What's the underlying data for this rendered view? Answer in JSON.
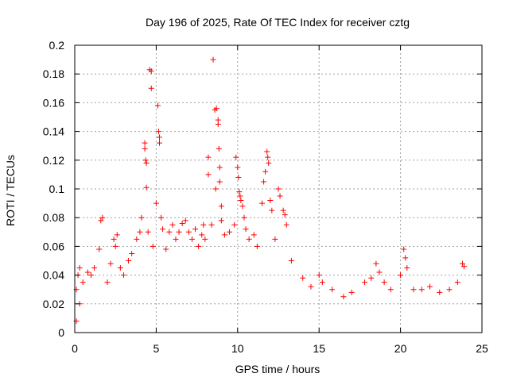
{
  "chart_data": {
    "type": "scatter",
    "title": "Day 196 of 2025, Rate Of TEC Index for receiver cztg",
    "xlabel": "GPS time / hours",
    "ylabel": "ROTI / TECUs",
    "xlim": [
      0,
      25
    ],
    "ylim": [
      0,
      0.2
    ],
    "xticks": [
      0,
      5,
      10,
      15,
      20,
      25
    ],
    "xtick_labels": [
      "0",
      "5",
      "10",
      "15",
      "20",
      "25"
    ],
    "yticks": [
      0,
      0.02,
      0.04,
      0.06,
      0.08,
      0.1,
      0.12,
      0.14,
      0.16,
      0.18,
      0.2
    ],
    "ytick_labels": [
      "0",
      "0.02",
      "0.04",
      "0.06",
      "0.08",
      "0.1",
      "0.12",
      "0.14",
      "0.16",
      "0.18",
      "0.2"
    ],
    "grid": true,
    "marker": "+",
    "color": "#ff0000",
    "series": [
      {
        "name": "ROTI",
        "points": [
          [
            0.1,
            0.008
          ],
          [
            0.1,
            0.03
          ],
          [
            0.2,
            0.04
          ],
          [
            0.3,
            0.045
          ],
          [
            0.3,
            0.02
          ],
          [
            0.5,
            0.035
          ],
          [
            0.8,
            0.042
          ],
          [
            1.0,
            0.04
          ],
          [
            1.2,
            0.045
          ],
          [
            1.5,
            0.058
          ],
          [
            1.6,
            0.078
          ],
          [
            1.7,
            0.08
          ],
          [
            2.0,
            0.035
          ],
          [
            2.2,
            0.048
          ],
          [
            2.4,
            0.065
          ],
          [
            2.5,
            0.06
          ],
          [
            2.6,
            0.068
          ],
          [
            2.8,
            0.045
          ],
          [
            3.0,
            0.04
          ],
          [
            3.3,
            0.05
          ],
          [
            3.5,
            0.055
          ],
          [
            3.8,
            0.065
          ],
          [
            4.0,
            0.07
          ],
          [
            4.1,
            0.08
          ],
          [
            4.3,
            0.132
          ],
          [
            4.3,
            0.128
          ],
          [
            4.35,
            0.12
          ],
          [
            4.4,
            0.118
          ],
          [
            4.4,
            0.101
          ],
          [
            4.5,
            0.07
          ],
          [
            4.6,
            0.183
          ],
          [
            4.7,
            0.182
          ],
          [
            4.7,
            0.17
          ],
          [
            4.8,
            0.06
          ],
          [
            5.0,
            0.09
          ],
          [
            5.1,
            0.158
          ],
          [
            5.15,
            0.14
          ],
          [
            5.2,
            0.136
          ],
          [
            5.2,
            0.132
          ],
          [
            5.3,
            0.08
          ],
          [
            5.4,
            0.072
          ],
          [
            5.6,
            0.058
          ],
          [
            5.8,
            0.07
          ],
          [
            6.0,
            0.075
          ],
          [
            6.2,
            0.065
          ],
          [
            6.4,
            0.07
          ],
          [
            6.6,
            0.076
          ],
          [
            6.8,
            0.078
          ],
          [
            7.0,
            0.07
          ],
          [
            7.2,
            0.065
          ],
          [
            7.4,
            0.072
          ],
          [
            7.6,
            0.06
          ],
          [
            7.8,
            0.068
          ],
          [
            7.9,
            0.075
          ],
          [
            8.0,
            0.065
          ],
          [
            8.2,
            0.122
          ],
          [
            8.2,
            0.11
          ],
          [
            8.4,
            0.075
          ],
          [
            8.5,
            0.19
          ],
          [
            8.6,
            0.155
          ],
          [
            8.65,
            0.1
          ],
          [
            8.7,
            0.156
          ],
          [
            8.8,
            0.148
          ],
          [
            8.8,
            0.145
          ],
          [
            8.85,
            0.128
          ],
          [
            8.9,
            0.115
          ],
          [
            8.9,
            0.105
          ],
          [
            9.0,
            0.088
          ],
          [
            9.0,
            0.078
          ],
          [
            9.2,
            0.068
          ],
          [
            9.5,
            0.07
          ],
          [
            9.8,
            0.075
          ],
          [
            9.9,
            0.122
          ],
          [
            10.0,
            0.115
          ],
          [
            10.05,
            0.108
          ],
          [
            10.1,
            0.098
          ],
          [
            10.15,
            0.095
          ],
          [
            10.2,
            0.092
          ],
          [
            10.3,
            0.088
          ],
          [
            10.4,
            0.08
          ],
          [
            10.5,
            0.072
          ],
          [
            10.7,
            0.065
          ],
          [
            11.0,
            0.068
          ],
          [
            11.2,
            0.06
          ],
          [
            11.5,
            0.09
          ],
          [
            11.6,
            0.105
          ],
          [
            11.7,
            0.112
          ],
          [
            11.8,
            0.126
          ],
          [
            11.85,
            0.122
          ],
          [
            11.9,
            0.118
          ],
          [
            12.0,
            0.092
          ],
          [
            12.1,
            0.085
          ],
          [
            12.3,
            0.065
          ],
          [
            12.5,
            0.1
          ],
          [
            12.6,
            0.095
          ],
          [
            12.8,
            0.085
          ],
          [
            12.9,
            0.082
          ],
          [
            13.0,
            0.075
          ],
          [
            13.3,
            0.05
          ],
          [
            14.0,
            0.038
          ],
          [
            14.5,
            0.032
          ],
          [
            15.0,
            0.04
          ],
          [
            15.2,
            0.035
          ],
          [
            15.8,
            0.03
          ],
          [
            16.5,
            0.025
          ],
          [
            17.0,
            0.028
          ],
          [
            17.8,
            0.035
          ],
          [
            18.2,
            0.038
          ],
          [
            18.5,
            0.048
          ],
          [
            18.7,
            0.042
          ],
          [
            19.0,
            0.035
          ],
          [
            19.4,
            0.03
          ],
          [
            20.0,
            0.04
          ],
          [
            20.2,
            0.058
          ],
          [
            20.3,
            0.052
          ],
          [
            20.4,
            0.045
          ],
          [
            20.8,
            0.03
          ],
          [
            21.3,
            0.03
          ],
          [
            21.8,
            0.032
          ],
          [
            22.4,
            0.028
          ],
          [
            23.0,
            0.03
          ],
          [
            23.5,
            0.035
          ],
          [
            23.8,
            0.048
          ],
          [
            23.9,
            0.046
          ]
        ]
      }
    ]
  }
}
